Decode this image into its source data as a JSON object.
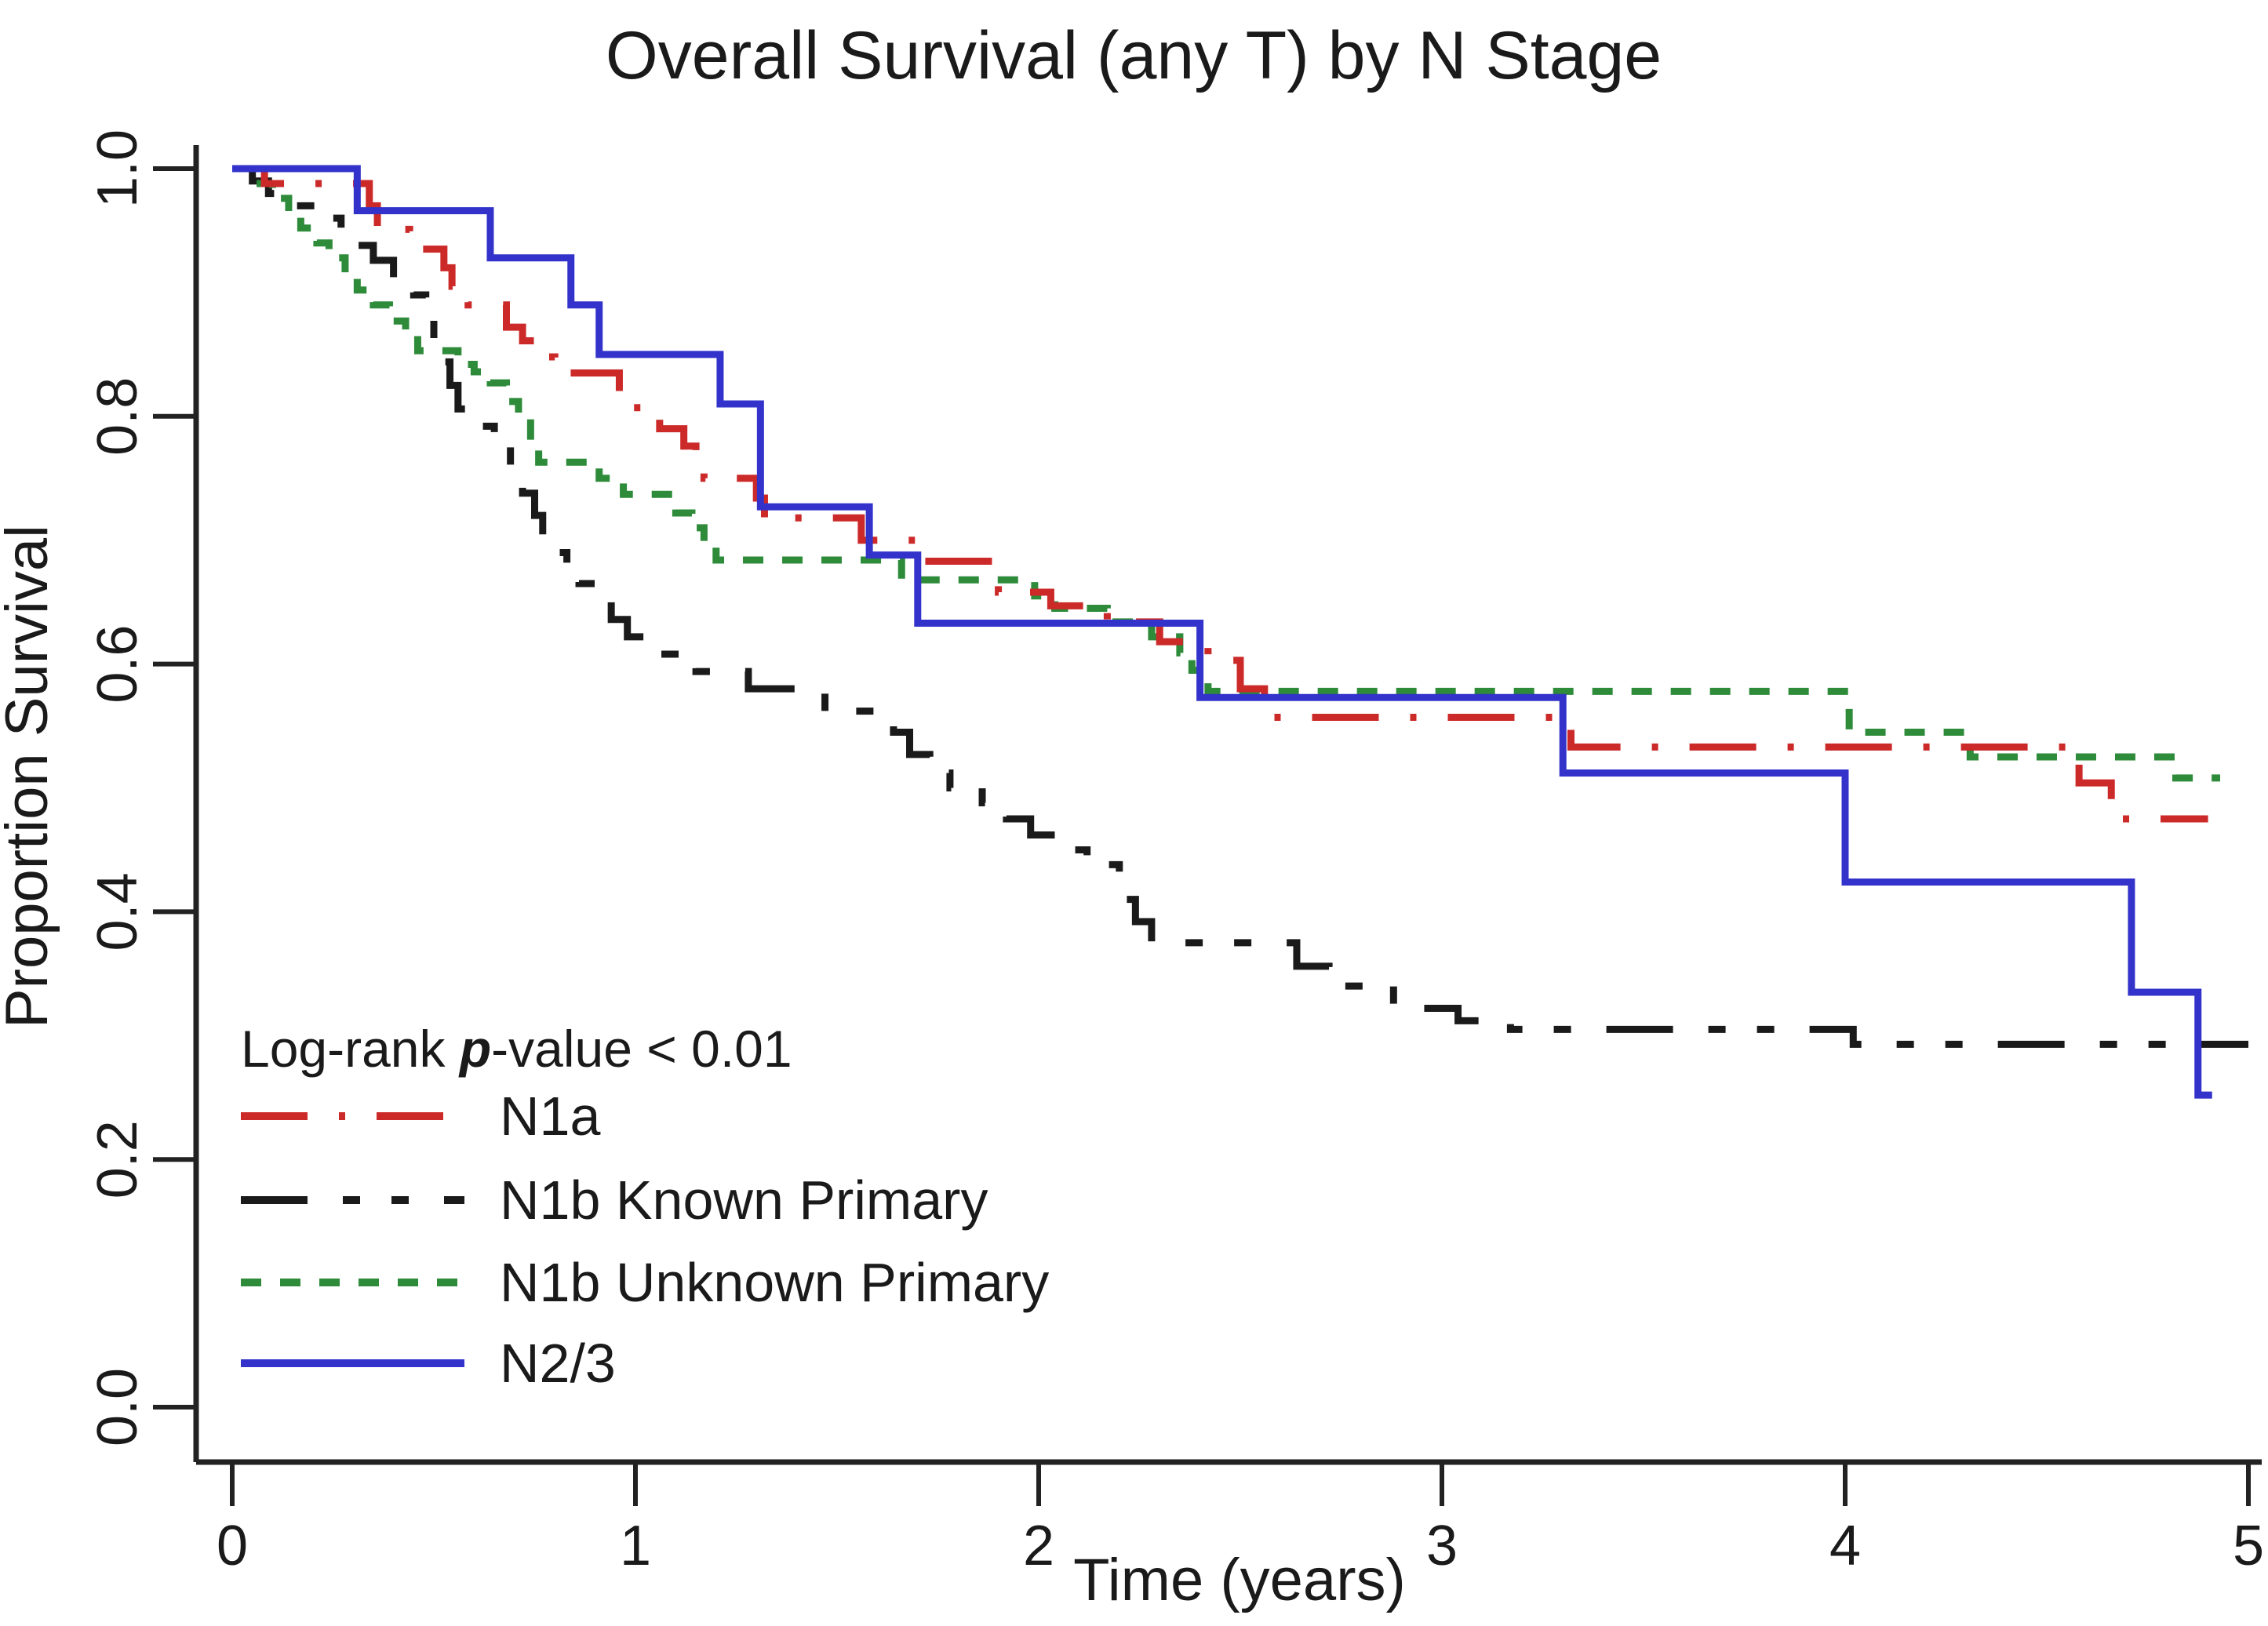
{
  "chart_data": {
    "type": "line",
    "subtype": "kaplan-meier-step",
    "title": "Overall Survival (any T) by N Stage",
    "xlabel": "Time (years)",
    "ylabel": "Proportion Survival",
    "xlim": [
      0,
      5
    ],
    "ylim": [
      0.0,
      1.0
    ],
    "x_ticks": [
      0,
      1,
      2,
      3,
      4,
      5
    ],
    "y_ticks": [
      {
        "value": 0.0,
        "label": "0.0"
      },
      {
        "value": 0.2,
        "label": "0.2"
      },
      {
        "value": 0.4,
        "label": "0.4"
      },
      {
        "value": 0.6,
        "label": "0.6"
      },
      {
        "value": 0.8,
        "label": "0.8"
      },
      {
        "value": 1.0,
        "label": "1.0"
      }
    ],
    "grid": false,
    "legend_position": "lower-left-inside",
    "annotation": {
      "prefix": "Log-rank ",
      "italic_part": "p",
      "suffix": "-value < 0.01"
    },
    "axis_color": "#222222",
    "background": "#ffffff",
    "series": [
      {
        "name": "N1b Known Primary",
        "color": "#1a1a1a",
        "dash": "85 45 22 40 22 45",
        "end": 5.0,
        "steps": [
          [
            0,
            1.0
          ],
          [
            0.05,
            0.99
          ],
          [
            0.09,
            0.98
          ],
          [
            0.13,
            0.97
          ],
          [
            0.22,
            0.96
          ],
          [
            0.27,
            0.949
          ],
          [
            0.31,
            0.938
          ],
          [
            0.35,
            0.926
          ],
          [
            0.4,
            0.912
          ],
          [
            0.45,
            0.898
          ],
          [
            0.48,
            0.88
          ],
          [
            0.5,
            0.862
          ],
          [
            0.52,
            0.844
          ],
          [
            0.54,
            0.825
          ],
          [
            0.56,
            0.806
          ],
          [
            0.58,
            0.792
          ],
          [
            0.65,
            0.775
          ],
          [
            0.69,
            0.756
          ],
          [
            0.72,
            0.738
          ],
          [
            0.75,
            0.72
          ],
          [
            0.77,
            0.703
          ],
          [
            0.8,
            0.69
          ],
          [
            0.83,
            0.678
          ],
          [
            0.86,
            0.665
          ],
          [
            0.9,
            0.65
          ],
          [
            0.94,
            0.636
          ],
          [
            0.98,
            0.622
          ],
          [
            1.02,
            0.608
          ],
          [
            1.15,
            0.594
          ],
          [
            1.28,
            0.58
          ],
          [
            1.47,
            0.562
          ],
          [
            1.64,
            0.545
          ],
          [
            1.68,
            0.527
          ],
          [
            1.73,
            0.512
          ],
          [
            1.78,
            0.5
          ],
          [
            1.86,
            0.488
          ],
          [
            1.92,
            0.475
          ],
          [
            1.98,
            0.462
          ],
          [
            2.04,
            0.45
          ],
          [
            2.12,
            0.438
          ],
          [
            2.2,
            0.41
          ],
          [
            2.24,
            0.392
          ],
          [
            2.28,
            0.375
          ],
          [
            2.64,
            0.356
          ],
          [
            2.72,
            0.34
          ],
          [
            2.88,
            0.322
          ],
          [
            3.04,
            0.312
          ],
          [
            3.17,
            0.305
          ],
          [
            4.02,
            0.293
          ]
        ]
      },
      {
        "name": "N1b Unknown Primary",
        "color": "#2e8b3a",
        "dash": "26 24",
        "end": 4.93,
        "steps": [
          [
            0,
            1.0
          ],
          [
            0.05,
            0.988
          ],
          [
            0.1,
            0.976
          ],
          [
            0.14,
            0.964
          ],
          [
            0.17,
            0.952
          ],
          [
            0.21,
            0.94
          ],
          [
            0.24,
            0.928
          ],
          [
            0.28,
            0.915
          ],
          [
            0.31,
            0.902
          ],
          [
            0.35,
            0.89
          ],
          [
            0.39,
            0.877
          ],
          [
            0.43,
            0.865
          ],
          [
            0.46,
            0.853
          ],
          [
            0.56,
            0.842
          ],
          [
            0.6,
            0.836
          ],
          [
            0.64,
            0.827
          ],
          [
            0.68,
            0.812
          ],
          [
            0.71,
            0.798
          ],
          [
            0.74,
            0.776
          ],
          [
            0.76,
            0.763
          ],
          [
            0.91,
            0.75
          ],
          [
            0.97,
            0.737
          ],
          [
            1.1,
            0.722
          ],
          [
            1.14,
            0.71
          ],
          [
            1.17,
            0.697
          ],
          [
            1.2,
            0.684
          ],
          [
            1.66,
            0.668
          ],
          [
            1.99,
            0.655
          ],
          [
            2.04,
            0.645
          ],
          [
            2.17,
            0.634
          ],
          [
            2.28,
            0.622
          ],
          [
            2.35,
            0.609
          ],
          [
            2.38,
            0.595
          ],
          [
            2.42,
            0.578
          ],
          [
            4.01,
            0.545
          ],
          [
            4.31,
            0.525
          ],
          [
            4.82,
            0.508
          ]
        ]
      },
      {
        "name": "N1a",
        "color": "#cc2929",
        "dash": "85 40 8 40",
        "end": 4.9,
        "steps": [
          [
            0,
            1.0
          ],
          [
            0.08,
            0.988
          ],
          [
            0.34,
            0.97
          ],
          [
            0.36,
            0.951
          ],
          [
            0.44,
            0.935
          ],
          [
            0.525,
            0.92
          ],
          [
            0.545,
            0.905
          ],
          [
            0.585,
            0.89
          ],
          [
            0.68,
            0.872
          ],
          [
            0.72,
            0.861
          ],
          [
            0.77,
            0.848
          ],
          [
            0.8,
            0.835
          ],
          [
            0.96,
            0.82
          ],
          [
            0.99,
            0.807
          ],
          [
            1.06,
            0.79
          ],
          [
            1.12,
            0.776
          ],
          [
            1.15,
            0.762
          ],
          [
            1.17,
            0.75
          ],
          [
            1.3,
            0.734
          ],
          [
            1.32,
            0.718
          ],
          [
            1.56,
            0.7
          ],
          [
            1.7,
            0.683
          ],
          [
            1.9,
            0.658
          ],
          [
            2.03,
            0.647
          ],
          [
            2.17,
            0.634
          ],
          [
            2.3,
            0.618
          ],
          [
            2.42,
            0.603
          ],
          [
            2.5,
            0.58
          ],
          [
            2.56,
            0.557
          ],
          [
            3.32,
            0.533
          ],
          [
            4.58,
            0.504
          ],
          [
            4.66,
            0.475
          ]
        ]
      },
      {
        "name": "N2/3",
        "color": "#3333cc",
        "dash": null,
        "end": 4.91,
        "steps": [
          [
            0,
            1.0
          ],
          [
            0.31,
            0.966
          ],
          [
            0.64,
            0.928
          ],
          [
            0.84,
            0.89
          ],
          [
            0.91,
            0.85
          ],
          [
            1.21,
            0.81
          ],
          [
            1.31,
            0.727
          ],
          [
            1.58,
            0.688
          ],
          [
            1.7,
            0.633
          ],
          [
            2.4,
            0.573
          ],
          [
            3.3,
            0.512
          ],
          [
            4.0,
            0.424
          ],
          [
            4.71,
            0.335
          ],
          [
            4.875,
            0.252
          ]
        ]
      }
    ],
    "legend_order": [
      "N1a",
      "N1b Known Primary",
      "N1b Unknown Primary",
      "N2/3"
    ]
  }
}
